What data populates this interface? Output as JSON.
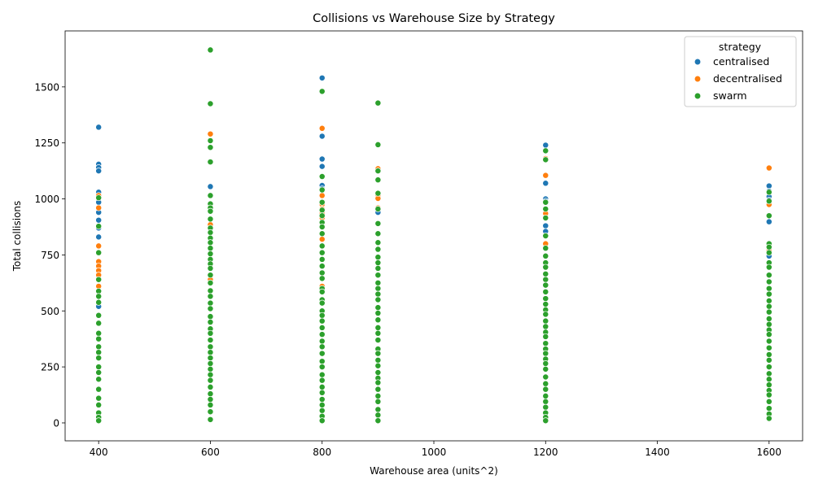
{
  "chart_data": {
    "type": "scatter",
    "title": "Collisions vs Warehouse Size by Strategy",
    "xlabel": "Warehouse area (units^2)",
    "ylabel": "Total collisions",
    "xlim": [
      340,
      1660
    ],
    "ylim": [
      -80,
      1750
    ],
    "xticks": [
      400,
      600,
      800,
      1000,
      1200,
      1400,
      1600
    ],
    "yticks": [
      0,
      250,
      500,
      750,
      1000,
      1250,
      1500
    ],
    "x_categories": [
      400,
      600,
      800,
      900,
      1200,
      1600
    ],
    "legend": {
      "title": "strategy",
      "position": "top-right"
    },
    "grid": false,
    "series": [
      {
        "name": "centralised",
        "color": "#1f77b4",
        "points": [
          [
            400,
            1320
          ],
          [
            400,
            1155
          ],
          [
            400,
            1140
          ],
          [
            400,
            1125
          ],
          [
            400,
            1030
          ],
          [
            400,
            985
          ],
          [
            400,
            940
          ],
          [
            400,
            905
          ],
          [
            400,
            870
          ],
          [
            400,
            830
          ],
          [
            400,
            790
          ],
          [
            400,
            520
          ],
          [
            600,
            1055
          ],
          [
            800,
            1540
          ],
          [
            800,
            1280
          ],
          [
            800,
            1178
          ],
          [
            800,
            1145
          ],
          [
            800,
            1060
          ],
          [
            800,
            1045
          ],
          [
            900,
            1128
          ],
          [
            900,
            940
          ],
          [
            1200,
            1240
          ],
          [
            1200,
            1070
          ],
          [
            1200,
            1000
          ],
          [
            1200,
            990
          ],
          [
            1200,
            880
          ],
          [
            1200,
            855
          ],
          [
            1600,
            1058
          ],
          [
            1600,
            1035
          ],
          [
            1600,
            1010
          ],
          [
            1600,
            995
          ],
          [
            1600,
            898
          ],
          [
            1600,
            760
          ],
          [
            1600,
            745
          ]
        ]
      },
      {
        "name": "decentralised",
        "color": "#ff7f0e",
        "points": [
          [
            400,
            1015
          ],
          [
            400,
            960
          ],
          [
            400,
            790
          ],
          [
            400,
            720
          ],
          [
            400,
            700
          ],
          [
            400,
            680
          ],
          [
            400,
            660
          ],
          [
            400,
            610
          ],
          [
            600,
            1290
          ],
          [
            600,
            885
          ],
          [
            600,
            640
          ],
          [
            800,
            1315
          ],
          [
            800,
            1015
          ],
          [
            800,
            975
          ],
          [
            800,
            955
          ],
          [
            800,
            935
          ],
          [
            800,
            915
          ],
          [
            800,
            895
          ],
          [
            800,
            820
          ],
          [
            800,
            610
          ],
          [
            900,
            1135
          ],
          [
            900,
            1015
          ],
          [
            900,
            1002
          ],
          [
            900,
            960
          ],
          [
            1200,
            1180
          ],
          [
            1200,
            1105
          ],
          [
            1200,
            935
          ],
          [
            1200,
            800
          ],
          [
            1600,
            1138
          ],
          [
            1600,
            975
          ],
          [
            1600,
            770
          ]
        ]
      },
      {
        "name": "swarm",
        "color": "#2ca02c",
        "points": [
          [
            400,
            1005
          ],
          [
            400,
            878
          ],
          [
            400,
            760
          ],
          [
            400,
            640
          ],
          [
            400,
            588
          ],
          [
            400,
            565
          ],
          [
            400,
            538
          ],
          [
            400,
            480
          ],
          [
            400,
            445
          ],
          [
            400,
            400
          ],
          [
            400,
            375
          ],
          [
            400,
            340
          ],
          [
            400,
            315
          ],
          [
            400,
            290
          ],
          [
            400,
            250
          ],
          [
            400,
            225
          ],
          [
            400,
            195
          ],
          [
            400,
            150
          ],
          [
            400,
            110
          ],
          [
            400,
            80
          ],
          [
            400,
            45
          ],
          [
            400,
            25
          ],
          [
            400,
            10
          ],
          [
            600,
            1665
          ],
          [
            600,
            1425
          ],
          [
            600,
            1260
          ],
          [
            600,
            1230
          ],
          [
            600,
            1165
          ],
          [
            600,
            1015
          ],
          [
            600,
            978
          ],
          [
            600,
            960
          ],
          [
            600,
            945
          ],
          [
            600,
            910
          ],
          [
            600,
            870
          ],
          [
            600,
            850
          ],
          [
            600,
            825
          ],
          [
            600,
            805
          ],
          [
            600,
            780
          ],
          [
            600,
            755
          ],
          [
            600,
            730
          ],
          [
            600,
            710
          ],
          [
            600,
            690
          ],
          [
            600,
            660
          ],
          [
            600,
            625
          ],
          [
            600,
            590
          ],
          [
            600,
            565
          ],
          [
            600,
            535
          ],
          [
            600,
            510
          ],
          [
            600,
            475
          ],
          [
            600,
            450
          ],
          [
            600,
            420
          ],
          [
            600,
            400
          ],
          [
            600,
            370
          ],
          [
            600,
            340
          ],
          [
            600,
            315
          ],
          [
            600,
            290
          ],
          [
            600,
            265
          ],
          [
            600,
            240
          ],
          [
            600,
            215
          ],
          [
            600,
            190
          ],
          [
            600,
            160
          ],
          [
            600,
            130
          ],
          [
            600,
            105
          ],
          [
            600,
            80
          ],
          [
            600,
            50
          ],
          [
            600,
            15
          ],
          [
            800,
            1480
          ],
          [
            800,
            1100
          ],
          [
            800,
            1040
          ],
          [
            800,
            985
          ],
          [
            800,
            950
          ],
          [
            800,
            925
          ],
          [
            800,
            895
          ],
          [
            800,
            875
          ],
          [
            800,
            845
          ],
          [
            800,
            790
          ],
          [
            800,
            760
          ],
          [
            800,
            730
          ],
          [
            800,
            700
          ],
          [
            800,
            670
          ],
          [
            800,
            645
          ],
          [
            800,
            600
          ],
          [
            800,
            585
          ],
          [
            800,
            550
          ],
          [
            800,
            535
          ],
          [
            800,
            500
          ],
          [
            800,
            480
          ],
          [
            800,
            455
          ],
          [
            800,
            425
          ],
          [
            800,
            395
          ],
          [
            800,
            365
          ],
          [
            800,
            340
          ],
          [
            800,
            310
          ],
          [
            800,
            275
          ],
          [
            800,
            250
          ],
          [
            800,
            215
          ],
          [
            800,
            190
          ],
          [
            800,
            160
          ],
          [
            800,
            135
          ],
          [
            800,
            105
          ],
          [
            800,
            80
          ],
          [
            800,
            55
          ],
          [
            800,
            30
          ],
          [
            800,
            10
          ],
          [
            900,
            1428
          ],
          [
            900,
            1242
          ],
          [
            900,
            1125
          ],
          [
            900,
            1085
          ],
          [
            900,
            1025
          ],
          [
            900,
            955
          ],
          [
            900,
            890
          ],
          [
            900,
            845
          ],
          [
            900,
            805
          ],
          [
            900,
            775
          ],
          [
            900,
            740
          ],
          [
            900,
            715
          ],
          [
            900,
            690
          ],
          [
            900,
            660
          ],
          [
            900,
            625
          ],
          [
            900,
            600
          ],
          [
            900,
            575
          ],
          [
            900,
            550
          ],
          [
            900,
            515
          ],
          [
            900,
            490
          ],
          [
            900,
            460
          ],
          [
            900,
            425
          ],
          [
            900,
            400
          ],
          [
            900,
            370
          ],
          [
            900,
            330
          ],
          [
            900,
            310
          ],
          [
            900,
            280
          ],
          [
            900,
            255
          ],
          [
            900,
            225
          ],
          [
            900,
            200
          ],
          [
            900,
            180
          ],
          [
            900,
            150
          ],
          [
            900,
            120
          ],
          [
            900,
            95
          ],
          [
            900,
            60
          ],
          [
            900,
            35
          ],
          [
            900,
            10
          ],
          [
            1200,
            1215
          ],
          [
            1200,
            1175
          ],
          [
            1200,
            985
          ],
          [
            1200,
            955
          ],
          [
            1200,
            915
          ],
          [
            1200,
            835
          ],
          [
            1200,
            780
          ],
          [
            1200,
            745
          ],
          [
            1200,
            715
          ],
          [
            1200,
            695
          ],
          [
            1200,
            665
          ],
          [
            1200,
            640
          ],
          [
            1200,
            615
          ],
          [
            1200,
            585
          ],
          [
            1200,
            555
          ],
          [
            1200,
            530
          ],
          [
            1200,
            505
          ],
          [
            1200,
            485
          ],
          [
            1200,
            455
          ],
          [
            1200,
            430
          ],
          [
            1200,
            405
          ],
          [
            1200,
            385
          ],
          [
            1200,
            355
          ],
          [
            1200,
            330
          ],
          [
            1200,
            310
          ],
          [
            1200,
            285
          ],
          [
            1200,
            265
          ],
          [
            1200,
            240
          ],
          [
            1200,
            205
          ],
          [
            1200,
            175
          ],
          [
            1200,
            150
          ],
          [
            1200,
            120
          ],
          [
            1200,
            95
          ],
          [
            1200,
            70
          ],
          [
            1200,
            45
          ],
          [
            1200,
            25
          ],
          [
            1200,
            10
          ],
          [
            1600,
            1030
          ],
          [
            1600,
            990
          ],
          [
            1600,
            925
          ],
          [
            1600,
            800
          ],
          [
            1600,
            785
          ],
          [
            1600,
            760
          ],
          [
            1600,
            715
          ],
          [
            1600,
            695
          ],
          [
            1600,
            660
          ],
          [
            1600,
            630
          ],
          [
            1600,
            600
          ],
          [
            1600,
            575
          ],
          [
            1600,
            545
          ],
          [
            1600,
            520
          ],
          [
            1600,
            495
          ],
          [
            1600,
            465
          ],
          [
            1600,
            440
          ],
          [
            1600,
            415
          ],
          [
            1600,
            395
          ],
          [
            1600,
            365
          ],
          [
            1600,
            335
          ],
          [
            1600,
            305
          ],
          [
            1600,
            280
          ],
          [
            1600,
            250
          ],
          [
            1600,
            220
          ],
          [
            1600,
            195
          ],
          [
            1600,
            170
          ],
          [
            1600,
            145
          ],
          [
            1600,
            125
          ],
          [
            1600,
            95
          ],
          [
            1600,
            65
          ],
          [
            1600,
            40
          ],
          [
            1600,
            20
          ]
        ]
      }
    ]
  }
}
